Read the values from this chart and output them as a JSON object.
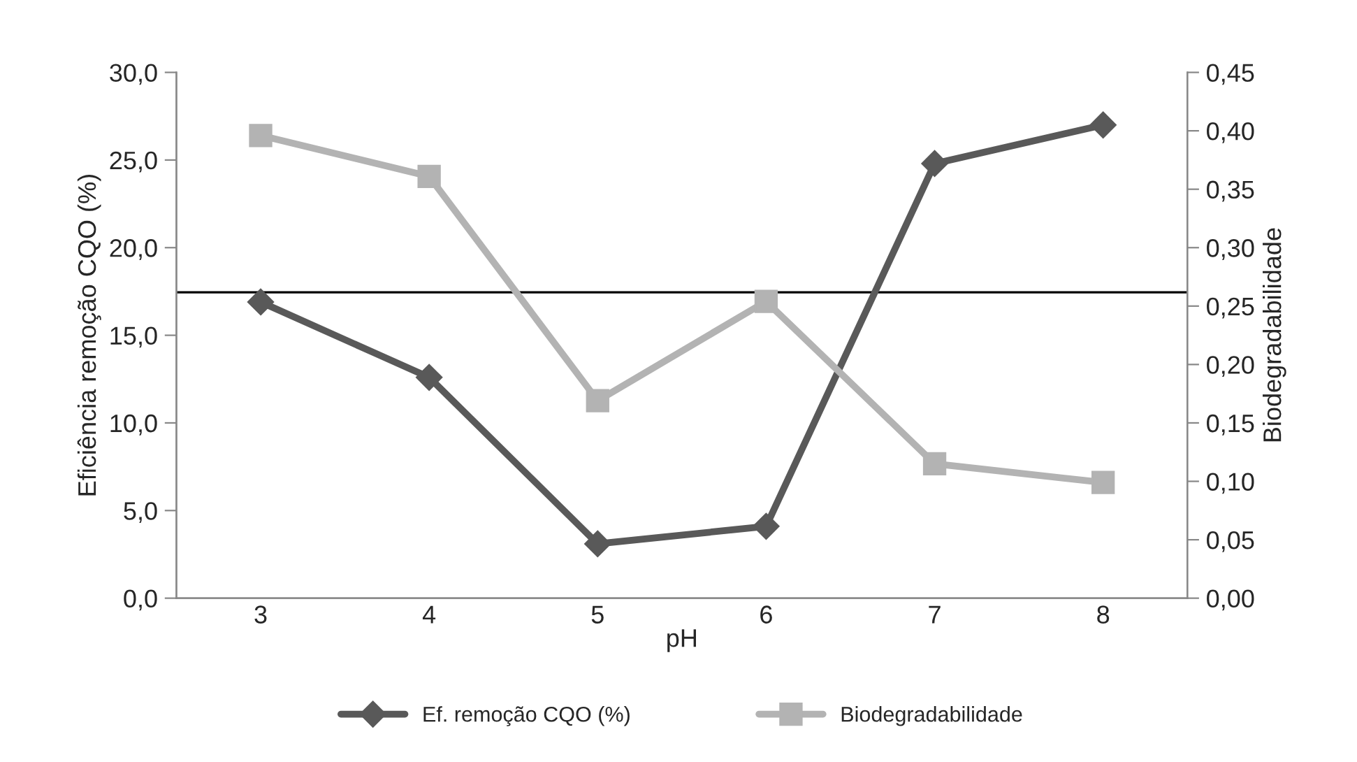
{
  "chart_data": {
    "type": "line",
    "xlabel": "pH",
    "ylabel": "Eficiência remoção CQO (%)",
    "y2label": "Biodegradabilidade",
    "categories": [
      "3",
      "4",
      "5",
      "6",
      "7",
      "8"
    ],
    "series": [
      {
        "name": "Ef. remoção CQO (%)",
        "color": "#595959",
        "values": [
          16.9,
          12.6,
          3.1,
          4.1,
          24.8,
          27.0
        ],
        "marker": "diamond"
      },
      {
        "name": "Biodegradabilidade",
        "color": "#b3b3b3",
        "values": [
          0.396,
          0.361,
          0.169,
          0.254,
          0.115,
          0.099
        ],
        "axis": "y2",
        "marker": "square"
      }
    ],
    "ylim": [
      0,
      30
    ],
    "yticks": [
      {
        "value": 0,
        "label": "0,0"
      },
      {
        "value": 5,
        "label": "5,0"
      },
      {
        "value": 10,
        "label": "10,0"
      },
      {
        "value": 15,
        "label": "15,0"
      },
      {
        "value": 20,
        "label": "20,0"
      },
      {
        "value": 25,
        "label": "25,0"
      },
      {
        "value": 30,
        "label": "30,0"
      }
    ],
    "y2lim": [
      0,
      0.45
    ],
    "y2ticks": [
      {
        "value": 0,
        "label": "0,00"
      },
      {
        "value": 0.05,
        "label": "0,05"
      },
      {
        "value": 0.1,
        "label": "0,10"
      },
      {
        "value": 0.15,
        "label": "0,15"
      },
      {
        "value": 0.2,
        "label": "0,20"
      },
      {
        "value": 0.25,
        "label": "0,25"
      },
      {
        "value": 0.3,
        "label": "0,30"
      },
      {
        "value": 0.35,
        "label": "0,35"
      },
      {
        "value": 0.4,
        "label": "0,40"
      },
      {
        "value": 0.45,
        "label": "0,45"
      }
    ],
    "ref_lines": [
      {
        "axis": "y",
        "value": 17.45,
        "color": "#000000"
      }
    ],
    "grid": false,
    "legend": "bottom",
    "line_style": "solid"
  }
}
